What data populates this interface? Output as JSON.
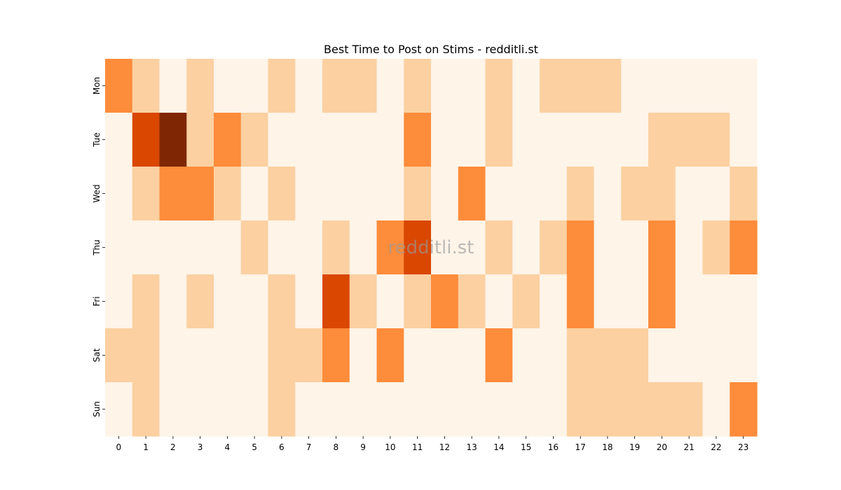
{
  "chart_data": {
    "type": "heatmap",
    "title": "Best Time to Post on Stims - redditli.st",
    "watermark": "redditli.st",
    "x_categories": [
      "0",
      "1",
      "2",
      "3",
      "4",
      "5",
      "6",
      "7",
      "8",
      "9",
      "10",
      "11",
      "12",
      "13",
      "14",
      "15",
      "16",
      "17",
      "18",
      "19",
      "20",
      "21",
      "22",
      "23"
    ],
    "y_categories": [
      "Mon",
      "Tue",
      "Wed",
      "Thu",
      "Fri",
      "Sat",
      "Sun"
    ],
    "xlabel": "",
    "ylabel": "",
    "colormap": "Oranges",
    "value_range": [
      0,
      4
    ],
    "colors": [
      "#fef4e8",
      "#fcd0a1",
      "#fd8c3b",
      "#d94701",
      "#7f2704"
    ],
    "values": [
      [
        2,
        1,
        0,
        1,
        0,
        0,
        1,
        0,
        1,
        1,
        0,
        1,
        0,
        0,
        1,
        0,
        1,
        1,
        1,
        0,
        0,
        0,
        0,
        0
      ],
      [
        0,
        3,
        4,
        1,
        2,
        1,
        0,
        0,
        0,
        0,
        0,
        2,
        0,
        0,
        1,
        0,
        0,
        0,
        0,
        0,
        1,
        1,
        1,
        0
      ],
      [
        0,
        1,
        2,
        2,
        1,
        0,
        1,
        0,
        0,
        0,
        0,
        1,
        0,
        2,
        0,
        0,
        0,
        1,
        0,
        1,
        1,
        0,
        0,
        1
      ],
      [
        0,
        0,
        0,
        0,
        0,
        1,
        0,
        0,
        1,
        0,
        2,
        3,
        0,
        0,
        1,
        0,
        1,
        2,
        0,
        0,
        2,
        0,
        1,
        2
      ],
      [
        0,
        1,
        0,
        1,
        0,
        0,
        1,
        0,
        3,
        1,
        0,
        1,
        2,
        1,
        0,
        1,
        0,
        2,
        0,
        0,
        2,
        0,
        0,
        0
      ],
      [
        1,
        1,
        0,
        0,
        0,
        0,
        1,
        1,
        2,
        0,
        2,
        0,
        0,
        0,
        2,
        0,
        0,
        1,
        1,
        1,
        0,
        0,
        0,
        0
      ],
      [
        0,
        1,
        0,
        0,
        0,
        0,
        1,
        0,
        0,
        0,
        0,
        0,
        0,
        0,
        0,
        0,
        0,
        1,
        1,
        1,
        1,
        1,
        0,
        2
      ]
    ]
  }
}
